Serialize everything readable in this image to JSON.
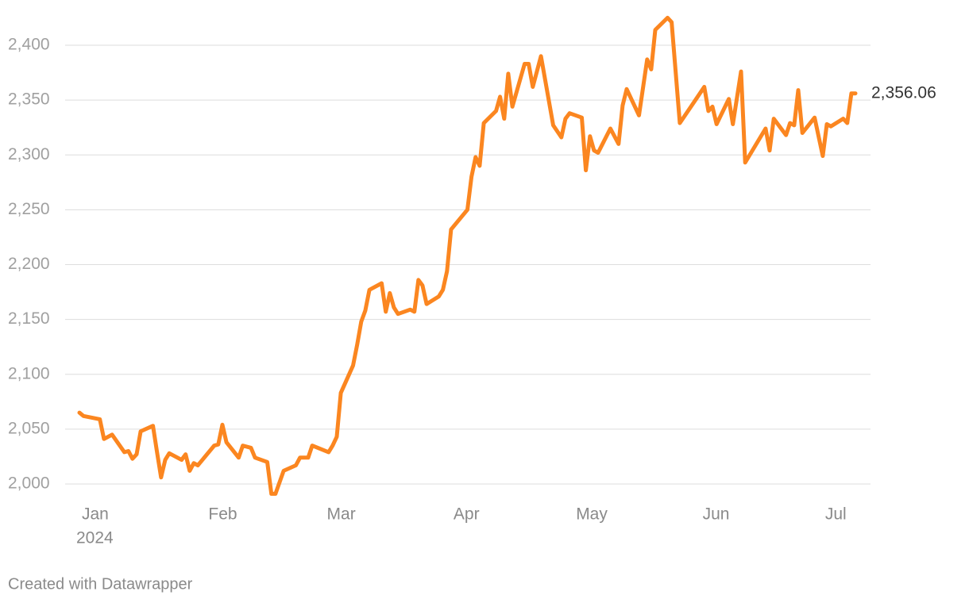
{
  "chart_data": {
    "type": "line",
    "color": "#fb8620",
    "grid": true,
    "x": [
      1,
      2,
      6,
      7,
      9,
      12,
      13,
      14,
      15,
      16,
      19,
      20,
      21,
      22,
      23,
      26,
      27,
      28,
      29,
      30,
      34,
      35,
      36,
      37,
      40,
      41,
      43,
      44,
      47,
      48,
      49,
      51,
      54,
      55,
      57,
      58,
      62,
      63,
      64,
      65,
      68,
      69,
      70,
      71,
      72,
      75,
      76,
      77,
      78,
      79,
      82,
      83,
      84,
      85,
      86,
      89,
      90,
      91,
      92,
      96,
      97,
      98,
      99,
      100,
      103,
      104,
      105,
      106,
      107,
      110,
      111,
      112,
      114,
      117,
      119,
      120,
      121,
      124,
      125,
      126,
      127,
      128,
      131,
      133,
      134,
      135,
      138,
      140,
      141,
      142,
      145,
      146,
      148,
      152,
      154,
      155,
      156,
      157,
      160,
      161,
      163,
      164,
      169,
      170,
      171,
      174,
      175,
      176,
      177,
      178,
      181,
      183,
      184,
      185,
      188,
      189,
      190,
      191
    ],
    "values": [
      2065,
      2062,
      2059,
      2041,
      2045,
      2029,
      2030,
      2023,
      2027,
      2048,
      2053,
      2029,
      2006,
      2022,
      2028,
      2022,
      2027,
      2012,
      2019,
      2017,
      2035,
      2036,
      2054,
      2038,
      2024,
      2035,
      2033,
      2024,
      2020,
      1991,
      1991,
      2012,
      2017,
      2024,
      2024,
      2035,
      2029,
      2035,
      2043,
      2083,
      2108,
      2127,
      2148,
      2158,
      2177,
      2183,
      2157,
      2174,
      2161,
      2155,
      2159,
      2157,
      2186,
      2181,
      2164,
      2171,
      2177,
      2194,
      2232,
      2250,
      2280,
      2298,
      2290,
      2329,
      2340,
      2353,
      2333,
      2374,
      2344,
      2383,
      2383,
      2362,
      2390,
      2327,
      2316,
      2333,
      2338,
      2334,
      2286,
      2317,
      2304,
      2302,
      2324,
      2310,
      2345,
      2360,
      2336,
      2387,
      2378,
      2414,
      2425,
      2421,
      2329,
      2351,
      2362,
      2340,
      2344,
      2328,
      2351,
      2328,
      2376,
      2293,
      2324,
      2304,
      2333,
      2318,
      2329,
      2327,
      2359,
      2320,
      2334,
      2299,
      2328,
      2326,
      2333,
      2329,
      2356,
      2356.06
    ],
    "value_labels": [
      null,
      null,
      null,
      null,
      null,
      null,
      null,
      null,
      null,
      null,
      null,
      null,
      null,
      null,
      null,
      null,
      null,
      null,
      null,
      null,
      null,
      null,
      null,
      null,
      null,
      null,
      null,
      null,
      null,
      null,
      null,
      null,
      null,
      null,
      null,
      null,
      null,
      null,
      null,
      null,
      null,
      null,
      null,
      null,
      null,
      null,
      null,
      null,
      null,
      null,
      null,
      null,
      null,
      null,
      null,
      null,
      null,
      null,
      null,
      null,
      null,
      null,
      null,
      null,
      null,
      null,
      null,
      null,
      null,
      null,
      null,
      null,
      null,
      null,
      null,
      null,
      null,
      null,
      null,
      null,
      null,
      null,
      null,
      null,
      null,
      null,
      null,
      null,
      null,
      null,
      null,
      null,
      null,
      null,
      null,
      null,
      null,
      null,
      null,
      null,
      null,
      null,
      null,
      null,
      null,
      null,
      null,
      null,
      null,
      null,
      null,
      null,
      null,
      null,
      null,
      null,
      null,
      "2,356.06"
    ],
    "xlim": [
      1,
      191
    ],
    "xticks": [
      {
        "value": 1,
        "label": "Jan"
      },
      {
        "value": 32,
        "label": "Feb"
      },
      {
        "value": 61,
        "label": "Mar"
      },
      {
        "value": 92,
        "label": "Apr"
      },
      {
        "value": 122,
        "label": "May"
      },
      {
        "value": 153,
        "label": "Jun"
      },
      {
        "value": 183,
        "label": "Jul"
      }
    ],
    "x_sublabel": "2024",
    "ylim": [
      1990,
      2425
    ],
    "yticks": [
      {
        "value": 2000,
        "label": "2,000"
      },
      {
        "value": 2050,
        "label": "2,050"
      },
      {
        "value": 2100,
        "label": "2,100"
      },
      {
        "value": 2150,
        "label": "2,150"
      },
      {
        "value": 2200,
        "label": "2,200"
      },
      {
        "value": 2250,
        "label": "2,250"
      },
      {
        "value": 2300,
        "label": "2,300"
      },
      {
        "value": 2350,
        "label": "2,350"
      },
      {
        "value": 2400,
        "label": "2,400"
      }
    ],
    "footer": "Created with Datawrapper"
  }
}
